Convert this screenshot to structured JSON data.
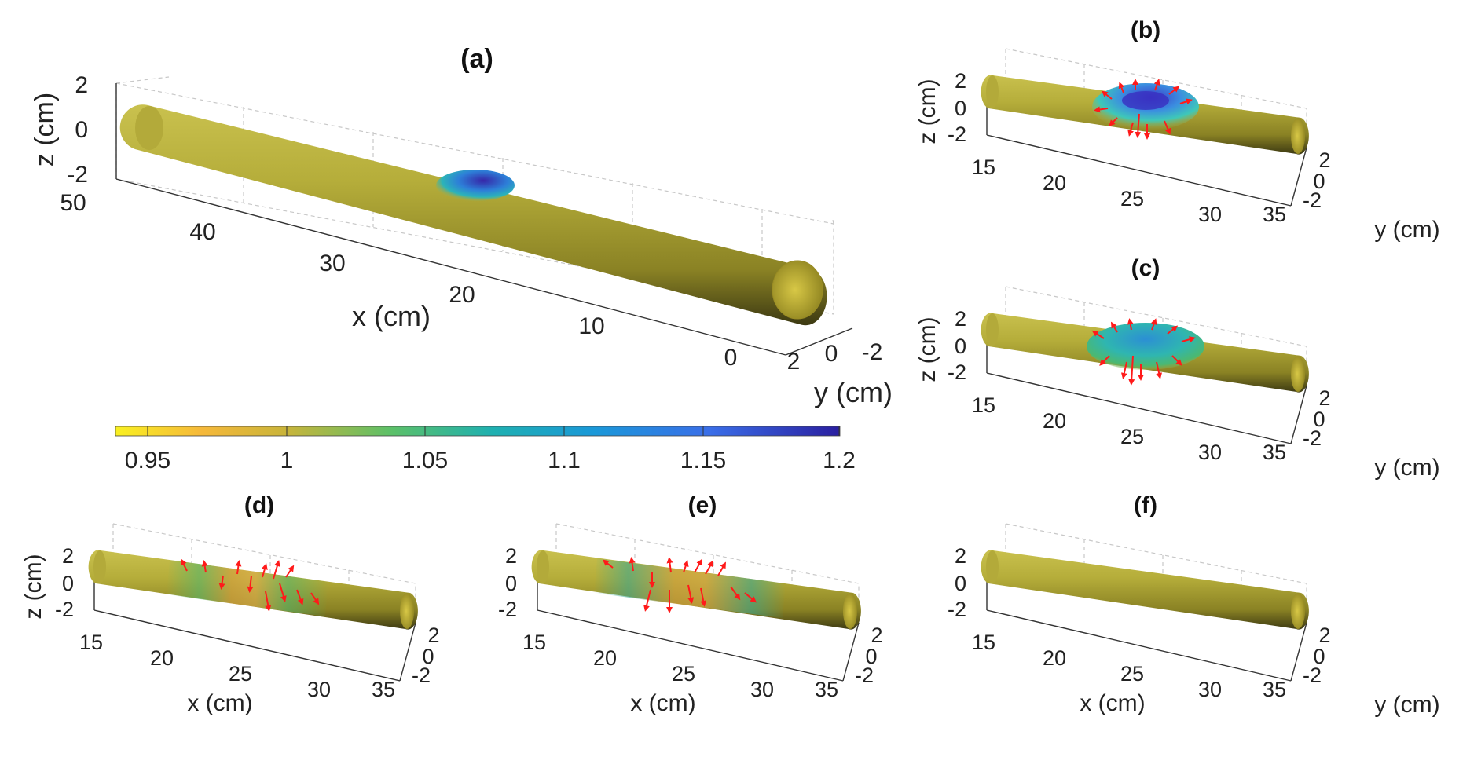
{
  "colorbar": {
    "ticks": [
      "0.95",
      "1",
      "1.05",
      "1.1",
      "1.15",
      "1.2"
    ]
  },
  "panels": [
    {
      "id": "a",
      "title": "(a)",
      "x_label": "x (cm)",
      "y_label": "y (cm)",
      "z_label": "z (cm)",
      "x_ticks": [
        "50",
        "40",
        "30",
        "20",
        "10",
        "0"
      ],
      "y_ticks": [
        "2",
        "0",
        "-2"
      ],
      "z_ticks": [
        "2",
        "0",
        "-2"
      ]
    },
    {
      "id": "b",
      "title": "(b)",
      "y_label": "y (cm)",
      "z_label": "z (cm)",
      "x_ticks": [
        "15",
        "20",
        "25",
        "30",
        "35"
      ],
      "y_ticks": [
        "2",
        "0",
        "-2"
      ],
      "z_ticks": [
        "2",
        "0",
        "-2"
      ]
    },
    {
      "id": "c",
      "title": "(c)",
      "y_label": "y (cm)",
      "z_label": "z (cm)",
      "x_ticks": [
        "15",
        "20",
        "25",
        "30",
        "35"
      ],
      "y_ticks": [
        "2",
        "0",
        "-2"
      ],
      "z_ticks": [
        "2",
        "0",
        "-2"
      ]
    },
    {
      "id": "d",
      "title": "(d)",
      "x_label": "x (cm)",
      "z_label": "z (cm)",
      "x_ticks": [
        "15",
        "20",
        "25",
        "30",
        "35"
      ],
      "y_ticks": [
        "2",
        "0",
        "-2"
      ],
      "z_ticks": [
        "2",
        "0",
        "-2"
      ]
    },
    {
      "id": "e",
      "title": "(e)",
      "x_label": "x (cm)",
      "x_ticks": [
        "15",
        "20",
        "25",
        "30",
        "35"
      ],
      "y_ticks": [
        "2",
        "0",
        "-2"
      ],
      "z_ticks": [
        "2",
        "0",
        "-2"
      ]
    },
    {
      "id": "f",
      "title": "(f)",
      "x_label": "x (cm)",
      "y_label": "y (cm)",
      "x_ticks": [
        "15",
        "20",
        "25",
        "30",
        "35"
      ],
      "y_ticks": [
        "2",
        "0",
        "-2"
      ],
      "z_ticks": [
        "2",
        "0",
        "-2"
      ]
    }
  ],
  "colors": {
    "tube_light": "#c9c14e",
    "tube_mid": "#a39a2c",
    "tube_dark": "#4a4614",
    "tube_end": "#b8a82e",
    "bulge_blue": "#3a2fb5",
    "bulge_cyan": "#2aa8c8",
    "bulge_green": "#4cb870",
    "bulge_orange": "#e0a040",
    "arrow_red": "#ff1a1a"
  }
}
